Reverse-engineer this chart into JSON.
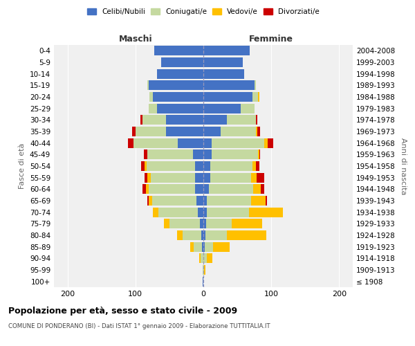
{
  "age_groups": [
    "100+",
    "95-99",
    "90-94",
    "85-89",
    "80-84",
    "75-79",
    "70-74",
    "65-69",
    "60-64",
    "55-59",
    "50-54",
    "45-49",
    "40-44",
    "35-39",
    "30-34",
    "25-29",
    "20-24",
    "15-19",
    "10-14",
    "5-9",
    "0-4"
  ],
  "birth_years": [
    "≤ 1908",
    "1909-1913",
    "1914-1918",
    "1919-1923",
    "1924-1928",
    "1929-1933",
    "1934-1938",
    "1939-1943",
    "1944-1948",
    "1949-1953",
    "1954-1958",
    "1959-1963",
    "1964-1968",
    "1969-1973",
    "1974-1978",
    "1979-1983",
    "1984-1988",
    "1989-1993",
    "1994-1998",
    "1999-2003",
    "2004-2008"
  ],
  "maschi": {
    "celibi": [
      1,
      0,
      0,
      2,
      3,
      5,
      8,
      10,
      12,
      12,
      12,
      15,
      38,
      55,
      55,
      68,
      74,
      80,
      68,
      62,
      72
    ],
    "coniugati": [
      0,
      1,
      4,
      12,
      28,
      45,
      58,
      65,
      68,
      65,
      72,
      68,
      65,
      45,
      35,
      12,
      5,
      2,
      0,
      0,
      0
    ],
    "vedovi": [
      0,
      0,
      2,
      5,
      8,
      8,
      8,
      5,
      5,
      5,
      3,
      0,
      0,
      0,
      0,
      0,
      0,
      0,
      0,
      0,
      0
    ],
    "divorziati": [
      0,
      0,
      0,
      0,
      0,
      0,
      0,
      2,
      5,
      5,
      5,
      5,
      8,
      5,
      3,
      0,
      0,
      0,
      0,
      0,
      0
    ]
  },
  "femmine": {
    "nubili": [
      0,
      0,
      0,
      2,
      3,
      4,
      5,
      5,
      8,
      10,
      10,
      12,
      12,
      25,
      35,
      55,
      72,
      75,
      60,
      58,
      68
    ],
    "coniugate": [
      0,
      1,
      5,
      12,
      32,
      38,
      62,
      65,
      65,
      60,
      62,
      68,
      78,
      52,
      42,
      20,
      8,
      2,
      0,
      0,
      0
    ],
    "vedove": [
      0,
      2,
      8,
      25,
      58,
      45,
      50,
      22,
      12,
      8,
      5,
      2,
      5,
      2,
      0,
      0,
      2,
      0,
      0,
      0,
      0
    ],
    "divorziate": [
      0,
      0,
      0,
      0,
      0,
      0,
      0,
      2,
      5,
      12,
      5,
      2,
      8,
      5,
      2,
      0,
      0,
      0,
      0,
      0,
      0
    ]
  },
  "colors": {
    "celibi_nubili": "#4472c4",
    "coniugati_e": "#c5d9a0",
    "vedovi_e": "#ffc000",
    "divorziati_e": "#cc0000"
  },
  "xlim": [
    -220,
    220
  ],
  "xticks": [
    -200,
    -100,
    0,
    100,
    200
  ],
  "xticklabels": [
    "200",
    "100",
    "0",
    "100",
    "200"
  ],
  "title": "Popolazione per età, sesso e stato civile - 2009",
  "subtitle": "COMUNE DI PONDERANO (BI) - Dati ISTAT 1° gennaio 2009 - Elaborazione TUTTITALIA.IT",
  "ylabel_left": "Fasce di età",
  "ylabel_right": "Anni di nascita",
  "maschi_label": "Maschi",
  "femmine_label": "Femmine",
  "legend_labels": [
    "Celibi/Nubili",
    "Coniugati/e",
    "Vedovi/e",
    "Divorziati/e"
  ],
  "background_color": "#f0f0f0",
  "bar_height": 0.85
}
